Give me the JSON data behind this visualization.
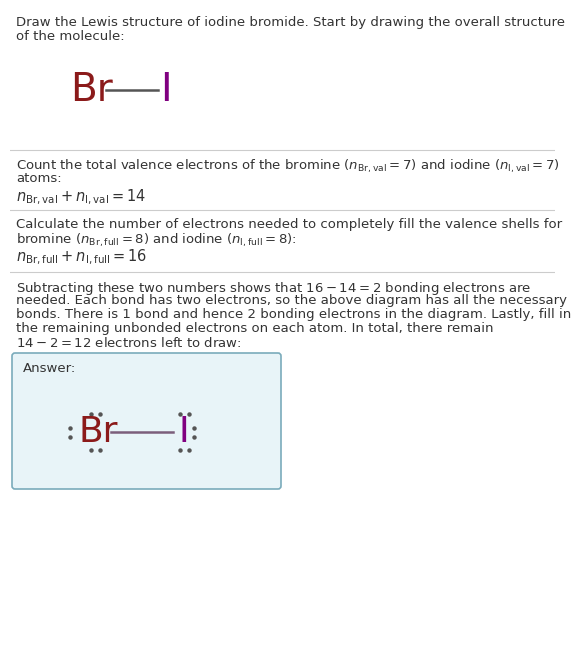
{
  "title_line1": "Draw the Lewis structure of iodine bromide. Start by drawing the overall structure",
  "title_line2": "of the molecule:",
  "section1_line1": "Count the total valence electrons of the bromine ($n_{\\mathrm{Br,val}} = 7$) and iodine ($n_{\\mathrm{I,val}} = 7$)",
  "section1_line2": "atoms:",
  "section1_eq": "$n_{\\mathrm{Br,val}} + n_{\\mathrm{I,val}} = 14$",
  "section2_line1": "Calculate the number of electrons needed to completely fill the valence shells for",
  "section2_line2": "bromine ($n_{\\mathrm{Br,full}} = 8$) and iodine ($n_{\\mathrm{I,full}} = 8$):",
  "section2_eq": "$n_{\\mathrm{Br,full}} + n_{\\mathrm{I,full}} = 16$",
  "section3_line1": "Subtracting these two numbers shows that $16 - 14 = 2$ bonding electrons are",
  "section3_line2": "needed. Each bond has two electrons, so the above diagram has all the necessary",
  "section3_line3": "bonds. There is 1 bond and hence 2 bonding electrons in the diagram. Lastly, fill in",
  "section3_line4": "the remaining unbonded electrons on each atom. In total, there remain",
  "section3_line5": "$14 - 2 = 12$ electrons left to draw:",
  "answer_label": "Answer:",
  "br_color": "#8B1A1A",
  "i_color": "#800080",
  "bond_color": "#7B5E7B",
  "dot_color": "#555555",
  "answer_bg": "#E8F4F8",
  "answer_border": "#7AABBB",
  "fig_bg": "#FFFFFF",
  "text_color": "#333333",
  "div_color": "#CCCCCC",
  "fontsize_body": 9.5,
  "fontsize_molecule_br": 28,
  "fontsize_molecule_i": 28,
  "fontsize_answer_br": 26,
  "fontsize_answer_i": 26
}
